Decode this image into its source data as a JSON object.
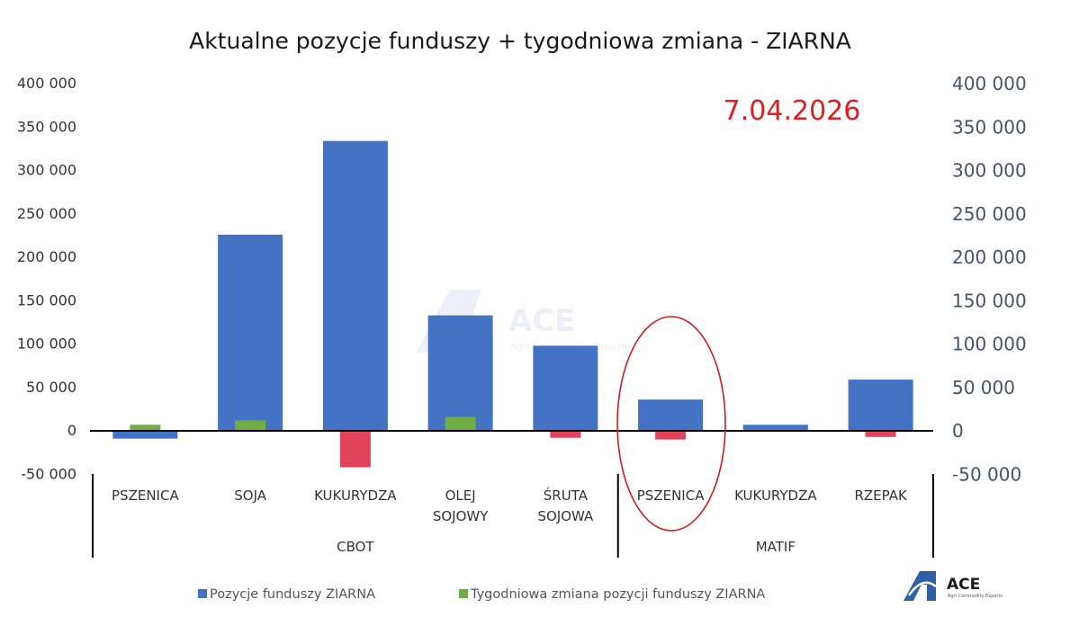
{
  "chart_data": {
    "type": "bar",
    "title": "Aktualne pozycje funduszy + tygodniowa zmiana - ZIARNA",
    "date_label": "7.04.2026",
    "ylim": [
      -50000,
      400000
    ],
    "y_ticks": [
      "-50 000",
      "0",
      "50 000",
      "100 000",
      "150 000",
      "200 000",
      "250 000",
      "300 000",
      "350 000",
      "400 000"
    ],
    "y_tick_values": [
      -50000,
      0,
      50000,
      100000,
      150000,
      200000,
      250000,
      300000,
      350000,
      400000
    ],
    "categories": [
      [
        "PSZENICA"
      ],
      [
        "SOJA"
      ],
      [
        "KUKURYDZA"
      ],
      [
        "OLEJ",
        "SOJOWY"
      ],
      [
        "ŚRUTA",
        "SOJOWA"
      ],
      [
        "PSZENICA"
      ],
      [
        "KUKURYDZA"
      ],
      [
        "RZEPAK"
      ]
    ],
    "groups": [
      {
        "label": "CBOT",
        "count": 5
      },
      {
        "label": "MATIF",
        "count": 3
      }
    ],
    "series": [
      {
        "name": "Pozycje funduszy ZIARNA",
        "color": "#4472c4",
        "values": [
          -9000,
          226000,
          334000,
          133000,
          98000,
          36000,
          7000,
          59000
        ]
      },
      {
        "name": "Tygodniowa zmiana pozycji funduszy ZIARNA",
        "color": "#70ad47",
        "negative_color": "#e0435a",
        "values": [
          7000,
          12000,
          -42000,
          16000,
          -8000,
          -10000,
          0,
          -7000
        ]
      }
    ],
    "highlight_category_index": 5,
    "legend_position": "bottom",
    "grid": false
  },
  "colors": {
    "highlight_ellipse": "#cc1f1f",
    "date_label": "#dd1e1e",
    "axis_line": "#000000"
  },
  "watermark": {
    "text": "ACE",
    "subtitle": "Agri Commodity Experts"
  },
  "logo": {
    "text": "ACE",
    "subtitle": "Agri Commodity Experts"
  }
}
